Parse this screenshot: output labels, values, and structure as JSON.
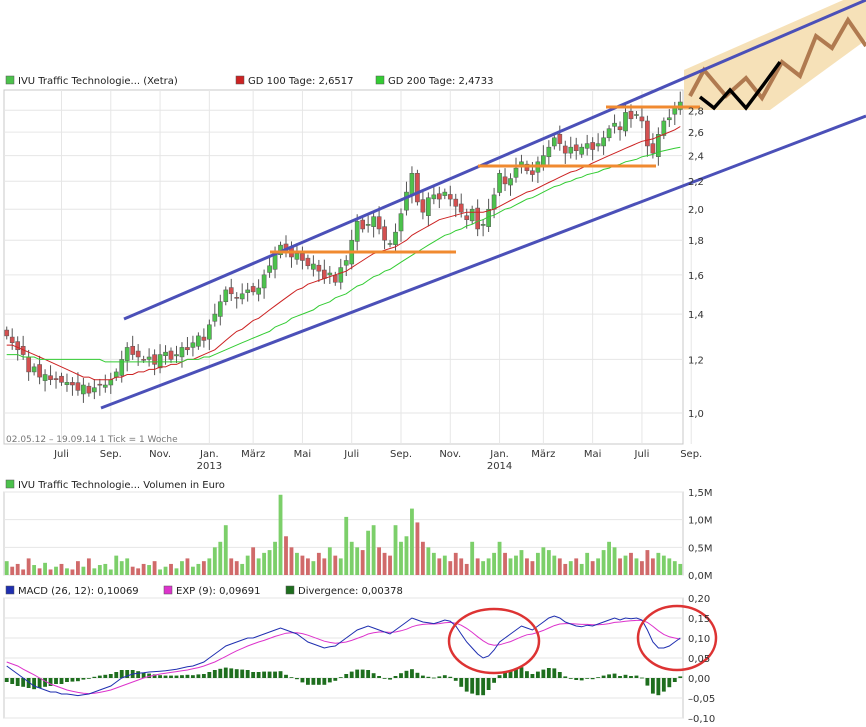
{
  "colors": {
    "up": "#4cc24c",
    "down": "#d45050",
    "gd100": "#cc2222",
    "gd200": "#33cc33",
    "macd": "#1f2fb0",
    "exp": "#dd33cc",
    "divergence": "#1e6e1e",
    "channel": "#4b50b8",
    "resistance": "#f08a30",
    "circle": "#dd3333",
    "forecast_fill": "#f5deb0",
    "forecast_line": "#b07a50",
    "grid": "#e6e6e6"
  },
  "legend": {
    "main": [
      {
        "label": "IVU Traffic Technologie... (Xetra)",
        "color": "#4cc24c"
      },
      {
        "label": "GD 100 Tage: 2,6517",
        "color": "#cc2222"
      },
      {
        "label": "GD 200 Tage: 2,4733",
        "color": "#33cc33"
      }
    ],
    "volume": {
      "label": "IVU Traffic Technologie... Volumen in Euro",
      "color": "#4cc24c"
    },
    "macd": [
      {
        "label": "MACD (26, 12): 0,10069",
        "color": "#1f2fb0"
      },
      {
        "label": "EXP (9): 0,09691",
        "color": "#dd33cc"
      },
      {
        "label": "Divergence: 0,00378",
        "color": "#1e6e1e"
      }
    ]
  },
  "info_text": "02.05.12 – 19.09.14   1 Tick = 1 Woche",
  "chart_data": [
    {
      "type": "candlestick",
      "panel": "price",
      "scale": "log",
      "ylim": [
        0.9,
        3.0
      ],
      "y_ticks": [
        {
          "value": 1.0,
          "label": "1,0"
        },
        {
          "value": 1.2,
          "label": "1,2"
        },
        {
          "value": 1.4,
          "label": "1,4"
        },
        {
          "value": 1.6,
          "label": "1,6"
        },
        {
          "value": 1.8,
          "label": "1,8"
        },
        {
          "value": 2.0,
          "label": "2,0"
        },
        {
          "value": 2.2,
          "label": "2,2"
        },
        {
          "value": 2.4,
          "label": "2,4"
        },
        {
          "value": 2.6,
          "label": "2,6"
        },
        {
          "value": 2.8,
          "label": "2,8"
        }
      ],
      "x_ticks": [
        {
          "week": 10,
          "label": "Juli"
        },
        {
          "week": 19,
          "label": "Sep."
        },
        {
          "week": 28,
          "label": "Nov."
        },
        {
          "week": 37,
          "label": "Jan.",
          "year": "2013"
        },
        {
          "week": 45,
          "label": "März"
        },
        {
          "week": 54,
          "label": "Mai"
        },
        {
          "week": 63,
          "label": "Juli"
        },
        {
          "week": 72,
          "label": "Sep."
        },
        {
          "week": 81,
          "label": "Nov."
        },
        {
          "week": 90,
          "label": "Jan.",
          "year": "2014"
        },
        {
          "week": 98,
          "label": "März"
        },
        {
          "week": 107,
          "label": "Mai"
        },
        {
          "week": 116,
          "label": "Juli"
        },
        {
          "week": 125,
          "label": "Sep."
        }
      ],
      "close": [
        1.3,
        1.27,
        1.24,
        1.22,
        1.15,
        1.17,
        1.13,
        1.14,
        1.12,
        1.12,
        1.11,
        1.11,
        1.1,
        1.08,
        1.1,
        1.07,
        1.09,
        1.1,
        1.1,
        1.12,
        1.15,
        1.2,
        1.25,
        1.22,
        1.21,
        1.2,
        1.21,
        1.18,
        1.22,
        1.23,
        1.2,
        1.22,
        1.25,
        1.24,
        1.27,
        1.3,
        1.28,
        1.35,
        1.4,
        1.46,
        1.52,
        1.5,
        1.48,
        1.5,
        1.52,
        1.51,
        1.53,
        1.6,
        1.65,
        1.72,
        1.77,
        1.74,
        1.7,
        1.72,
        1.68,
        1.65,
        1.66,
        1.62,
        1.58,
        1.61,
        1.56,
        1.64,
        1.68,
        1.8,
        1.92,
        1.87,
        1.9,
        1.95,
        1.87,
        1.8,
        1.78,
        1.85,
        1.97,
        2.12,
        2.26,
        2.05,
        1.98,
        2.08,
        2.1,
        2.07,
        2.12,
        2.07,
        2.02,
        1.98,
        1.93,
        2.0,
        1.87,
        1.9,
        2.0,
        2.1,
        2.26,
        2.18,
        2.22,
        2.3,
        2.35,
        2.28,
        2.25,
        2.35,
        2.4,
        2.47,
        2.55,
        2.5,
        2.42,
        2.47,
        2.44,
        2.47,
        2.5,
        2.45,
        2.5,
        2.55,
        2.63,
        2.68,
        2.62,
        2.78,
        2.72,
        2.76,
        2.7,
        2.48,
        2.42,
        2.58,
        2.7,
        2.73,
        2.83,
        2.88
      ],
      "gd100": [
        1.26,
        1.26,
        1.25,
        1.24,
        1.23,
        1.22,
        1.21,
        1.2,
        1.19,
        1.18,
        1.17,
        1.16,
        1.15,
        1.14,
        1.13,
        1.13,
        1.12,
        1.12,
        1.12,
        1.12,
        1.13,
        1.13,
        1.14,
        1.14,
        1.15,
        1.15,
        1.16,
        1.16,
        1.17,
        1.17,
        1.18,
        1.18,
        1.19,
        1.2,
        1.2,
        1.21,
        1.22,
        1.23,
        1.24,
        1.26,
        1.28,
        1.3,
        1.32,
        1.33,
        1.35,
        1.37,
        1.38,
        1.4,
        1.42,
        1.44,
        1.46,
        1.48,
        1.5,
        1.52,
        1.53,
        1.55,
        1.56,
        1.57,
        1.58,
        1.59,
        1.6,
        1.61,
        1.62,
        1.64,
        1.66,
        1.68,
        1.7,
        1.72,
        1.73,
        1.74,
        1.75,
        1.76,
        1.78,
        1.8,
        1.83,
        1.85,
        1.87,
        1.89,
        1.91,
        1.93,
        1.94,
        1.95,
        1.96,
        1.97,
        1.98,
        1.98,
        1.98,
        1.98,
        1.99,
        2.0,
        2.02,
        2.04,
        2.06,
        2.08,
        2.1,
        2.12,
        2.13,
        2.15,
        2.17,
        2.19,
        2.21,
        2.23,
        2.25,
        2.27,
        2.28,
        2.3,
        2.32,
        2.34,
        2.36,
        2.38,
        2.4,
        2.42,
        2.44,
        2.46,
        2.48,
        2.5,
        2.52,
        2.53,
        2.54,
        2.56,
        2.58,
        2.6,
        2.62,
        2.65
      ],
      "gd200": [
        1.22,
        1.22,
        1.22,
        1.21,
        1.21,
        1.21,
        1.2,
        1.2,
        1.2,
        1.2,
        1.2,
        1.2,
        1.2,
        1.2,
        1.2,
        1.2,
        1.2,
        1.2,
        1.19,
        1.19,
        1.19,
        1.19,
        1.19,
        1.19,
        1.19,
        1.19,
        1.19,
        1.19,
        1.19,
        1.19,
        1.19,
        1.19,
        1.19,
        1.2,
        1.2,
        1.2,
        1.21,
        1.21,
        1.22,
        1.23,
        1.24,
        1.25,
        1.26,
        1.27,
        1.28,
        1.29,
        1.3,
        1.31,
        1.32,
        1.34,
        1.35,
        1.36,
        1.38,
        1.39,
        1.4,
        1.41,
        1.42,
        1.44,
        1.45,
        1.46,
        1.48,
        1.49,
        1.5,
        1.52,
        1.54,
        1.55,
        1.57,
        1.59,
        1.6,
        1.62,
        1.63,
        1.65,
        1.67,
        1.69,
        1.71,
        1.73,
        1.75,
        1.77,
        1.79,
        1.81,
        1.83,
        1.84,
        1.86,
        1.87,
        1.89,
        1.9,
        1.92,
        1.93,
        1.95,
        1.96,
        1.98,
        2.0,
        2.01,
        2.03,
        2.05,
        2.07,
        2.08,
        2.1,
        2.12,
        2.14,
        2.16,
        2.17,
        2.19,
        2.2,
        2.22,
        2.23,
        2.25,
        2.26,
        2.27,
        2.29,
        2.3,
        2.32,
        2.33,
        2.35,
        2.36,
        2.37,
        2.39,
        2.4,
        2.41,
        2.43,
        2.44,
        2.45,
        2.46,
        2.47
      ]
    },
    {
      "type": "bar",
      "panel": "volume",
      "ylim": [
        0,
        1.5
      ],
      "y_ticks": [
        {
          "value": 0.0,
          "label": "0,0M"
        },
        {
          "value": 0.5,
          "label": "0,5M"
        },
        {
          "value": 1.0,
          "label": "1,0M"
        },
        {
          "value": 1.5,
          "label": "1,5M"
        }
      ],
      "values": [
        0.25,
        0.15,
        0.2,
        0.1,
        0.3,
        0.18,
        0.12,
        0.22,
        0.1,
        0.15,
        0.2,
        0.12,
        0.1,
        0.25,
        0.15,
        0.3,
        0.12,
        0.18,
        0.2,
        0.1,
        0.35,
        0.25,
        0.3,
        0.15,
        0.12,
        0.2,
        0.18,
        0.25,
        0.1,
        0.15,
        0.2,
        0.12,
        0.25,
        0.3,
        0.15,
        0.2,
        0.25,
        0.3,
        0.5,
        0.6,
        0.9,
        0.3,
        0.25,
        0.2,
        0.35,
        0.5,
        0.3,
        0.4,
        0.45,
        0.6,
        1.45,
        0.7,
        0.5,
        0.4,
        0.35,
        0.3,
        0.25,
        0.4,
        0.3,
        0.5,
        0.35,
        0.3,
        1.05,
        0.6,
        0.5,
        0.45,
        0.8,
        0.9,
        0.5,
        0.4,
        0.35,
        0.9,
        0.6,
        0.7,
        1.2,
        0.95,
        0.6,
        0.5,
        0.4,
        0.3,
        0.35,
        0.25,
        0.4,
        0.3,
        0.2,
        0.6,
        0.3,
        0.25,
        0.3,
        0.4,
        0.6,
        0.4,
        0.3,
        0.35,
        0.45,
        0.3,
        0.25,
        0.4,
        0.5,
        0.45,
        0.35,
        0.3,
        0.2,
        0.25,
        0.3,
        0.2,
        0.4,
        0.25,
        0.3,
        0.45,
        0.6,
        0.5,
        0.3,
        0.35,
        0.4,
        0.3,
        0.25,
        0.45,
        0.3,
        0.4,
        0.35,
        0.3,
        0.25,
        0.2
      ]
    },
    {
      "type": "line",
      "panel": "macd",
      "ylim": [
        -0.1,
        0.2
      ],
      "y_ticks": [
        {
          "value": -0.1,
          "label": "–0,10"
        },
        {
          "value": -0.05,
          "label": "–0,05"
        },
        {
          "value": 0.0,
          "label": "0,00"
        },
        {
          "value": 0.05,
          "label": "0,05"
        },
        {
          "value": 0.1,
          "label": "0,10"
        },
        {
          "value": 0.15,
          "label": "0,15"
        },
        {
          "value": 0.2,
          "label": "0,20"
        }
      ],
      "series": [
        {
          "name": "MACD (26, 12)",
          "values": [
            0.03,
            0.02,
            0.01,
            0.0,
            -0.01,
            -0.02,
            -0.025,
            -0.03,
            -0.035,
            -0.035,
            -0.04,
            -0.04,
            -0.042,
            -0.044,
            -0.042,
            -0.04,
            -0.035,
            -0.03,
            -0.025,
            -0.02,
            -0.01,
            0.0,
            0.005,
            0.01,
            0.012,
            0.013,
            0.015,
            0.016,
            0.017,
            0.018,
            0.02,
            0.022,
            0.025,
            0.028,
            0.03,
            0.035,
            0.04,
            0.05,
            0.06,
            0.07,
            0.08,
            0.085,
            0.09,
            0.095,
            0.1,
            0.1,
            0.105,
            0.11,
            0.115,
            0.12,
            0.125,
            0.12,
            0.115,
            0.11,
            0.1,
            0.09,
            0.085,
            0.08,
            0.075,
            0.078,
            0.08,
            0.09,
            0.1,
            0.11,
            0.12,
            0.125,
            0.13,
            0.125,
            0.12,
            0.115,
            0.11,
            0.12,
            0.13,
            0.14,
            0.15,
            0.145,
            0.14,
            0.138,
            0.136,
            0.14,
            0.145,
            0.142,
            0.13,
            0.11,
            0.09,
            0.075,
            0.06,
            0.05,
            0.055,
            0.07,
            0.09,
            0.1,
            0.11,
            0.12,
            0.13,
            0.125,
            0.12,
            0.13,
            0.14,
            0.15,
            0.155,
            0.15,
            0.14,
            0.135,
            0.13,
            0.128,
            0.132,
            0.13,
            0.135,
            0.14,
            0.145,
            0.15,
            0.145,
            0.15,
            0.148,
            0.15,
            0.145,
            0.12,
            0.09,
            0.075,
            0.075,
            0.08,
            0.09,
            0.1
          ]
        },
        {
          "name": "EXP (9)",
          "values": [
            0.04,
            0.035,
            0.03,
            0.022,
            0.015,
            0.008,
            0.0,
            -0.008,
            -0.015,
            -0.02,
            -0.025,
            -0.03,
            -0.033,
            -0.036,
            -0.038,
            -0.039,
            -0.038,
            -0.036,
            -0.033,
            -0.03,
            -0.025,
            -0.02,
            -0.015,
            -0.01,
            -0.005,
            0.0,
            0.004,
            0.007,
            0.01,
            0.012,
            0.014,
            0.016,
            0.018,
            0.02,
            0.023,
            0.026,
            0.03,
            0.035,
            0.04,
            0.047,
            0.054,
            0.061,
            0.068,
            0.074,
            0.08,
            0.085,
            0.09,
            0.094,
            0.099,
            0.104,
            0.108,
            0.112,
            0.113,
            0.113,
            0.111,
            0.107,
            0.102,
            0.097,
            0.092,
            0.089,
            0.087,
            0.088,
            0.09,
            0.094,
            0.099,
            0.104,
            0.11,
            0.113,
            0.115,
            0.115,
            0.114,
            0.115,
            0.118,
            0.122,
            0.128,
            0.132,
            0.134,
            0.135,
            0.135,
            0.136,
            0.138,
            0.139,
            0.137,
            0.132,
            0.124,
            0.114,
            0.103,
            0.093,
            0.085,
            0.082,
            0.083,
            0.087,
            0.091,
            0.097,
            0.103,
            0.108,
            0.11,
            0.114,
            0.119,
            0.125,
            0.131,
            0.135,
            0.136,
            0.136,
            0.135,
            0.134,
            0.134,
            0.133,
            0.133,
            0.134,
            0.136,
            0.139,
            0.14,
            0.142,
            0.143,
            0.144,
            0.144,
            0.139,
            0.129,
            0.118,
            0.109,
            0.103,
            0.1,
            0.097
          ]
        },
        {
          "name": "Divergence",
          "values": [
            -0.01,
            -0.015,
            -0.02,
            -0.022,
            -0.025,
            -0.028,
            -0.025,
            -0.022,
            -0.02,
            -0.015,
            -0.015,
            -0.01,
            -0.009,
            -0.008,
            -0.004,
            -0.001,
            0.003,
            0.006,
            0.008,
            0.01,
            0.015,
            0.02,
            0.02,
            0.02,
            0.017,
            0.013,
            0.011,
            0.009,
            0.007,
            0.006,
            0.006,
            0.006,
            0.007,
            0.008,
            0.007,
            0.009,
            0.01,
            0.015,
            0.02,
            0.023,
            0.026,
            0.024,
            0.022,
            0.021,
            0.02,
            0.015,
            0.015,
            0.016,
            0.016,
            0.016,
            0.017,
            0.008,
            0.002,
            -0.003,
            -0.011,
            -0.017,
            -0.017,
            -0.017,
            -0.017,
            -0.011,
            -0.007,
            0.002,
            0.01,
            0.016,
            0.021,
            0.021,
            0.02,
            0.012,
            0.005,
            0.0,
            -0.004,
            0.005,
            0.012,
            0.018,
            0.022,
            0.013,
            0.006,
            0.003,
            0.001,
            0.004,
            0.007,
            0.003,
            -0.007,
            -0.022,
            -0.034,
            -0.039,
            -0.043,
            -0.043,
            -0.03,
            -0.012,
            0.007,
            0.013,
            0.019,
            0.023,
            0.027,
            0.017,
            0.01,
            0.016,
            0.021,
            0.025,
            0.024,
            0.015,
            0.004,
            -0.001,
            -0.005,
            -0.006,
            -0.002,
            -0.003,
            0.002,
            0.006,
            0.009,
            0.011,
            0.005,
            0.008,
            0.005,
            0.006,
            0.001,
            -0.019,
            -0.039,
            -0.043,
            -0.034,
            -0.023,
            -0.01,
            0.004
          ]
        }
      ]
    }
  ]
}
